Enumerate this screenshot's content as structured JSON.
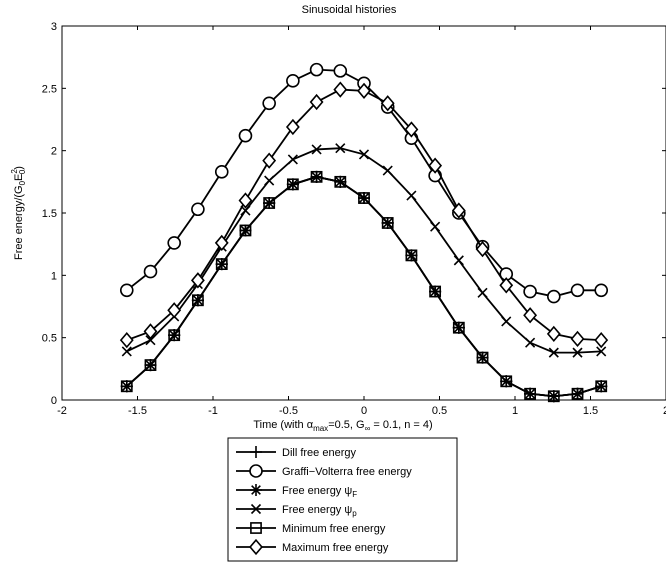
{
  "chart_data": {
    "type": "line",
    "title": "Sinusoidal histories",
    "xlabel": {
      "prefix": "Time (with ",
      "alpha": "α",
      "alpha_sub": "max",
      "alpha_val": "=0.5, G",
      "ginf_sub": "∞",
      "rest": " = 0.1, n = 4)"
    },
    "ylabel": {
      "prefix": "Free energy/(G",
      "sub1": "0",
      "mid": "E",
      "sup": "2",
      "sub2": "0",
      "suffix": ")"
    },
    "xlim": [
      -2,
      2
    ],
    "ylim": [
      0,
      3
    ],
    "xticks": [
      -2,
      -1.5,
      -1,
      -0.5,
      0,
      0.5,
      1,
      1.5,
      2
    ],
    "yticks": [
      0,
      0.5,
      1,
      1.5,
      2,
      2.5,
      3
    ],
    "grid": false,
    "legend_position": "below-plot",
    "x": [
      -1.571,
      -1.414,
      -1.257,
      -1.1,
      -0.942,
      -0.785,
      -0.628,
      -0.471,
      -0.314,
      -0.157,
      0,
      0.157,
      0.314,
      0.471,
      0.628,
      0.785,
      0.942,
      1.1,
      1.257,
      1.414,
      1.571
    ],
    "series": [
      {
        "name": "Dill free energy",
        "marker": "plus",
        "values": [
          0.11,
          0.28,
          0.52,
          0.8,
          1.09,
          1.36,
          1.58,
          1.73,
          1.79,
          1.75,
          1.62,
          1.42,
          1.16,
          0.87,
          0.58,
          0.34,
          0.15,
          0.05,
          0.03,
          0.05,
          0.11
        ]
      },
      {
        "name": "Graffi−Volterra free energy",
        "marker": "circle",
        "values": [
          0.88,
          1.03,
          1.26,
          1.53,
          1.83,
          2.12,
          2.38,
          2.56,
          2.65,
          2.64,
          2.54,
          2.35,
          2.1,
          1.8,
          1.5,
          1.23,
          1.01,
          0.87,
          0.83,
          0.88,
          0.88
        ]
      },
      {
        "name": "Free energy ψ",
        "name_sub": "F",
        "marker": "asterisk",
        "values": [
          0.11,
          0.28,
          0.52,
          0.8,
          1.09,
          1.36,
          1.58,
          1.73,
          1.79,
          1.75,
          1.62,
          1.42,
          1.16,
          0.87,
          0.58,
          0.34,
          0.15,
          0.05,
          0.03,
          0.05,
          0.11
        ]
      },
      {
        "name": "Free energy ψ",
        "name_sub": "p",
        "marker": "x",
        "values": [
          0.39,
          0.48,
          0.67,
          0.93,
          1.23,
          1.52,
          1.76,
          1.93,
          2.01,
          2.02,
          1.97,
          1.84,
          1.64,
          1.39,
          1.12,
          0.86,
          0.63,
          0.46,
          0.38,
          0.38,
          0.39
        ]
      },
      {
        "name": "Minimum free energy",
        "marker": "square",
        "values": [
          0.11,
          0.28,
          0.52,
          0.8,
          1.09,
          1.36,
          1.58,
          1.73,
          1.79,
          1.75,
          1.62,
          1.42,
          1.16,
          0.87,
          0.58,
          0.34,
          0.15,
          0.05,
          0.03,
          0.05,
          0.11
        ]
      },
      {
        "name": "Maximum free energy",
        "marker": "diamond",
        "values": [
          0.48,
          0.55,
          0.72,
          0.96,
          1.26,
          1.6,
          1.92,
          2.19,
          2.39,
          2.49,
          2.48,
          2.38,
          2.17,
          1.88,
          1.52,
          1.21,
          0.92,
          0.68,
          0.53,
          0.49,
          0.48
        ]
      }
    ],
    "colors": {
      "line": "#000000",
      "background": "#ffffff"
    }
  }
}
